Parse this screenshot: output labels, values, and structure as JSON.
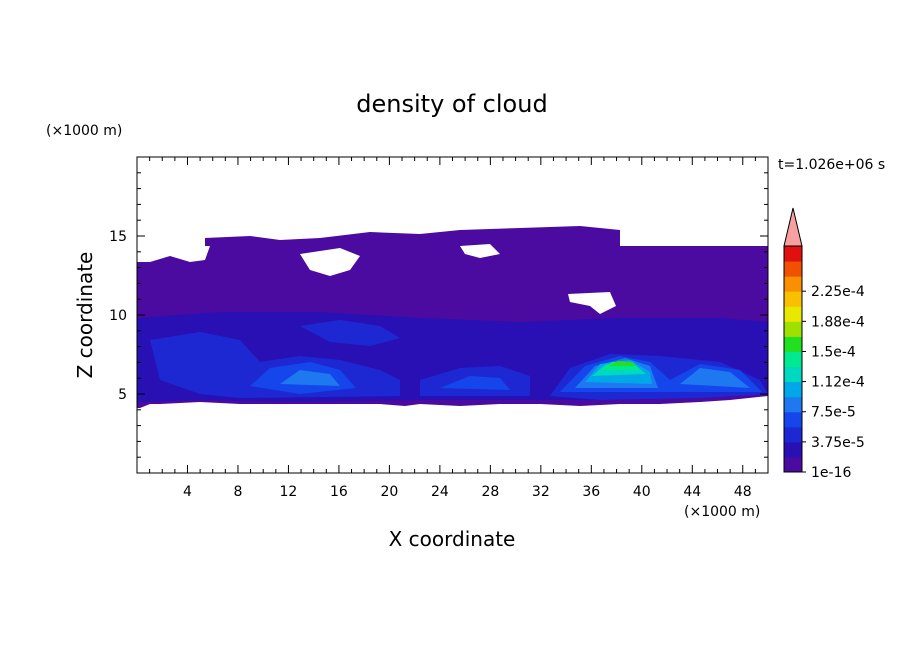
{
  "chart_data": {
    "type": "heatmap",
    "title": "density of cloud",
    "xlabel": "X coordinate",
    "ylabel": "Z coordinate",
    "x_unit": "(×1000 m)",
    "z_unit": "(×1000 m)",
    "time_label": "t=1.026e+06 s",
    "xlim": [
      0,
      50
    ],
    "ylim": [
      0,
      20
    ],
    "x_ticks": [
      4,
      8,
      12,
      16,
      20,
      24,
      28,
      32,
      36,
      40,
      44,
      48
    ],
    "y_ticks": [
      5,
      10,
      15
    ],
    "colorbar": {
      "tick_labels": [
        "1e-16",
        "3.75e-5",
        "7.5e-5",
        "1.12e-4",
        "1.5e-4",
        "1.88e-4",
        "2.25e-4"
      ],
      "levels": [
        "#4b0aa0",
        "#2810b4",
        "#1e28d2",
        "#1446ec",
        "#1e78f0",
        "#00a8e8",
        "#00d8c0",
        "#00e890",
        "#20e020",
        "#a0e000",
        "#e8e800",
        "#f8c000",
        "#f89000",
        "#f05000",
        "#e01010"
      ],
      "extend_color": "#f8a0a0"
    },
    "cloud_layers": [
      {
        "region": "upper cloud deck",
        "x_range": [
          0,
          50
        ],
        "z_range": [
          10.5,
          15
        ],
        "level_index": 0
      },
      {
        "region": "mid cloud band",
        "x_range": [
          0,
          50
        ],
        "z_range": [
          4.5,
          10.5
        ],
        "level_index": 1
      },
      {
        "region": "cell near x=14",
        "x_center": 14,
        "z_center": 6,
        "peak_level_index": 5
      },
      {
        "region": "cell near x=26",
        "x_center": 26,
        "z_center": 5.5,
        "peak_level_index": 4
      },
      {
        "region": "cell near x=38",
        "x_center": 38,
        "z_center": 6,
        "peak_level_index": 9
      },
      {
        "region": "cell near x=45",
        "x_center": 45,
        "z_center": 5.5,
        "peak_level_index": 5
      }
    ]
  }
}
